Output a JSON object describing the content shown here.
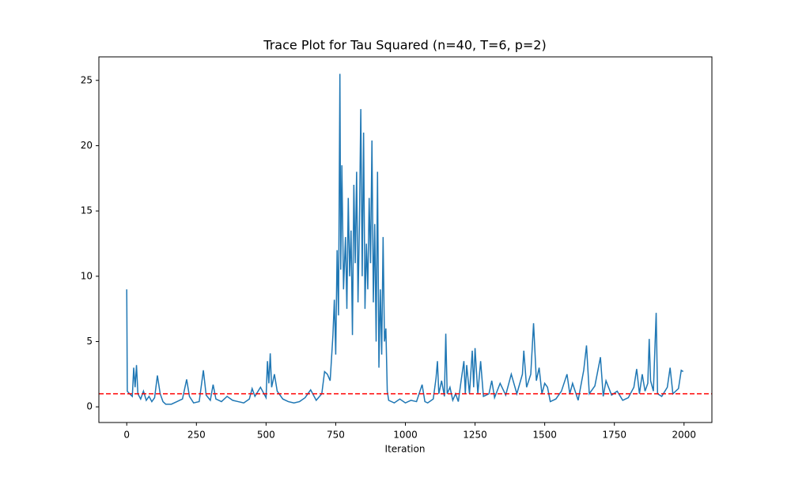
{
  "chart_data": {
    "type": "line",
    "title": "Trace Plot for Tau Squared (n=40, T=6, p=2)",
    "xlabel": "Iteration",
    "x": [
      0,
      2,
      10,
      20,
      25,
      30,
      35,
      40,
      50,
      60,
      70,
      80,
      90,
      100,
      110,
      120,
      130,
      140,
      160,
      180,
      200,
      215,
      225,
      240,
      260,
      275,
      285,
      300,
      310,
      320,
      340,
      360,
      380,
      400,
      420,
      440,
      450,
      460,
      480,
      500,
      505,
      510,
      515,
      520,
      530,
      540,
      560,
      580,
      600,
      620,
      640,
      660,
      680,
      700,
      710,
      720,
      730,
      740,
      745,
      750,
      755,
      760,
      765,
      768,
      772,
      778,
      785,
      790,
      795,
      800,
      805,
      810,
      815,
      820,
      825,
      830,
      835,
      840,
      845,
      850,
      855,
      860,
      865,
      870,
      875,
      880,
      885,
      890,
      895,
      900,
      905,
      910,
      915,
      920,
      925,
      930,
      935,
      940,
      960,
      980,
      1000,
      1020,
      1040,
      1060,
      1070,
      1080,
      1100,
      1110,
      1115,
      1120,
      1130,
      1140,
      1145,
      1150,
      1160,
      1170,
      1180,
      1190,
      1200,
      1210,
      1215,
      1220,
      1230,
      1240,
      1245,
      1250,
      1260,
      1270,
      1280,
      1300,
      1310,
      1320,
      1340,
      1360,
      1380,
      1400,
      1420,
      1425,
      1435,
      1450,
      1460,
      1470,
      1480,
      1490,
      1500,
      1510,
      1520,
      1540,
      1560,
      1580,
      1590,
      1600,
      1620,
      1640,
      1650,
      1660,
      1680,
      1700,
      1710,
      1720,
      1740,
      1760,
      1780,
      1800,
      1820,
      1830,
      1840,
      1850,
      1860,
      1870,
      1875,
      1880,
      1890,
      1900,
      1905,
      1920,
      1940,
      1950,
      1960,
      1980,
      1990,
      1997
    ],
    "series": [
      {
        "color": "#1f77b4",
        "values": [
          9.0,
          1.2,
          1.0,
          0.8,
          3.0,
          1.5,
          3.2,
          1.0,
          0.6,
          1.2,
          0.5,
          0.8,
          0.4,
          0.7,
          2.4,
          1.0,
          0.4,
          0.2,
          0.2,
          0.4,
          0.6,
          2.1,
          0.8,
          0.3,
          0.4,
          2.8,
          0.9,
          0.5,
          1.7,
          0.6,
          0.4,
          0.8,
          0.5,
          0.4,
          0.3,
          0.6,
          1.4,
          0.8,
          1.5,
          0.7,
          3.5,
          1.8,
          4.1,
          1.5,
          2.5,
          1.2,
          0.6,
          0.4,
          0.3,
          0.4,
          0.7,
          1.3,
          0.5,
          1.0,
          2.7,
          2.5,
          2.0,
          5.5,
          8.2,
          4.0,
          12.0,
          7.0,
          25.5,
          10.5,
          18.5,
          9.0,
          13.0,
          7.5,
          16.0,
          10.0,
          13.5,
          5.5,
          17.0,
          11.0,
          18.0,
          8.0,
          14.0,
          22.8,
          10.0,
          21.0,
          7.5,
          12.5,
          9.0,
          16.0,
          11.0,
          20.4,
          8.0,
          14.0,
          5.0,
          18.0,
          3.0,
          9.0,
          4.0,
          13.0,
          5.0,
          6.0,
          1.2,
          0.5,
          0.3,
          0.6,
          0.3,
          0.5,
          0.4,
          1.7,
          0.4,
          0.3,
          0.6,
          2.2,
          3.5,
          1.0,
          2.0,
          0.8,
          5.6,
          1.0,
          1.5,
          0.5,
          1.0,
          0.4,
          2.0,
          3.5,
          1.0,
          3.2,
          1.0,
          4.3,
          1.5,
          4.5,
          1.0,
          3.5,
          0.8,
          1.0,
          2.0,
          0.7,
          1.8,
          0.9,
          2.5,
          1.0,
          2.5,
          4.3,
          1.5,
          2.5,
          6.4,
          2.0,
          3.0,
          1.0,
          1.8,
          1.5,
          0.4,
          0.6,
          1.2,
          2.5,
          1.0,
          1.8,
          0.5,
          2.8,
          4.7,
          1.0,
          1.6,
          3.8,
          0.8,
          2.0,
          0.9,
          1.2,
          0.5,
          0.7,
          1.5,
          2.9,
          1.0,
          2.5,
          1.2,
          1.8,
          5.2,
          2.0,
          1.2,
          7.2,
          1.0,
          0.8,
          1.5,
          3.0,
          1.0,
          1.4,
          2.8,
          2.7
        ]
      }
    ],
    "reference_line": {
      "value": 1,
      "color": "#ff0000"
    },
    "xlim": [
      -100,
      2100
    ],
    "xticks": [
      0,
      250,
      500,
      750,
      1000,
      1250,
      1500,
      1750,
      2000
    ],
    "ylim": [
      -1.2,
      26.8
    ],
    "yticks": [
      0,
      5,
      10,
      15,
      20,
      25
    ]
  }
}
